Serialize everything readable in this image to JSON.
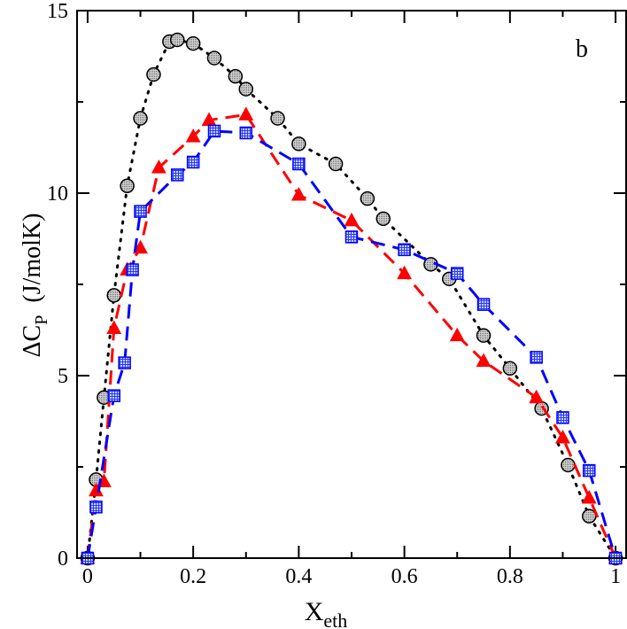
{
  "chart_data": {
    "type": "line",
    "title": "",
    "panel_label": "b",
    "xlabel": {
      "base": "X",
      "sub": "eth"
    },
    "ylabel": {
      "prefix": "ΔC",
      "sub": "P",
      "unit": "(J/molK)"
    },
    "xlim": [
      -0.02,
      1.02
    ],
    "ylim": [
      0,
      15
    ],
    "xticks": [
      0,
      0.2,
      0.4,
      0.6,
      0.8,
      1
    ],
    "xtick_labels": [
      "0",
      "0.2",
      "0.4",
      "0.6",
      "0.8",
      "1"
    ],
    "yticks": [
      0,
      5,
      10,
      15
    ],
    "ytick_labels": [
      "0",
      "5",
      "10",
      "15"
    ],
    "x_minor_ticks": [
      0.1,
      0.3,
      0.5,
      0.7,
      0.9
    ],
    "y_minor_ticks": [
      2.5,
      7.5,
      12.5
    ],
    "grid": false,
    "series": [
      {
        "name": "circles-dotted",
        "color": "#000000",
        "line_style": "dotted",
        "marker": "circle",
        "marker_fill": "#c8c8c8",
        "points": [
          [
            0.0,
            0.0
          ],
          [
            0.016,
            2.15
          ],
          [
            0.031,
            4.4
          ],
          [
            0.05,
            7.2
          ],
          [
            0.075,
            10.2
          ],
          [
            0.1,
            12.05
          ],
          [
            0.125,
            13.25
          ],
          [
            0.155,
            14.15
          ],
          [
            0.17,
            14.2
          ],
          [
            0.2,
            14.1
          ],
          [
            0.24,
            13.7
          ],
          [
            0.28,
            13.2
          ],
          [
            0.3,
            12.85
          ],
          [
            0.36,
            12.05
          ],
          [
            0.4,
            11.35
          ],
          [
            0.47,
            10.8
          ],
          [
            0.53,
            9.85
          ],
          [
            0.56,
            9.3
          ],
          [
            0.65,
            8.05
          ],
          [
            0.685,
            7.65
          ],
          [
            0.75,
            6.1
          ],
          [
            0.8,
            5.2
          ],
          [
            0.86,
            4.1
          ],
          [
            0.91,
            2.55
          ],
          [
            0.95,
            1.15
          ],
          [
            1.0,
            0.0
          ]
        ]
      },
      {
        "name": "triangles-dashed",
        "color": "#ff0000",
        "line_style": "dashed",
        "marker": "triangle",
        "marker_fill": "#ff0000",
        "points": [
          [
            0.0,
            0.0
          ],
          [
            0.016,
            1.85
          ],
          [
            0.031,
            2.1
          ],
          [
            0.05,
            6.3
          ],
          [
            0.075,
            7.9
          ],
          [
            0.1,
            8.5
          ],
          [
            0.135,
            10.7
          ],
          [
            0.2,
            11.55
          ],
          [
            0.23,
            12.0
          ],
          [
            0.3,
            12.15
          ],
          [
            0.4,
            9.95
          ],
          [
            0.5,
            9.25
          ],
          [
            0.6,
            7.8
          ],
          [
            0.7,
            6.1
          ],
          [
            0.75,
            5.4
          ],
          [
            0.85,
            4.4
          ],
          [
            0.9,
            3.3
          ],
          [
            0.95,
            1.65
          ],
          [
            1.0,
            0.0
          ]
        ]
      },
      {
        "name": "squares-dashed",
        "color": "#0000ff",
        "line_style": "dashed",
        "marker": "square",
        "marker_fill": "#5a6fe0",
        "points": [
          [
            0.0,
            0.0
          ],
          [
            0.016,
            1.4
          ],
          [
            0.05,
            4.45
          ],
          [
            0.07,
            5.35
          ],
          [
            0.085,
            7.9
          ],
          [
            0.1,
            9.5
          ],
          [
            0.17,
            10.5
          ],
          [
            0.2,
            10.85
          ],
          [
            0.24,
            11.7
          ],
          [
            0.3,
            11.65
          ],
          [
            0.4,
            10.8
          ],
          [
            0.5,
            8.8
          ],
          [
            0.6,
            8.45
          ],
          [
            0.7,
            7.8
          ],
          [
            0.75,
            6.95
          ],
          [
            0.85,
            5.5
          ],
          [
            0.9,
            3.85
          ],
          [
            0.95,
            2.4
          ],
          [
            1.0,
            0.0
          ]
        ]
      }
    ]
  }
}
